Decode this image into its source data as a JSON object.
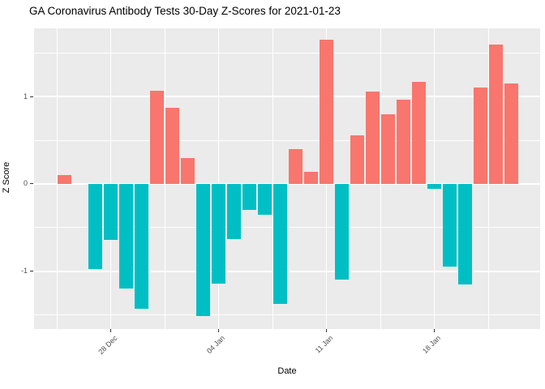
{
  "chart_data": {
    "type": "bar",
    "title": "GA Coronavirus Antibody Tests 30-Day Z-Scores for 2021-01-23",
    "xlabel": "Date",
    "ylabel": "Z Score",
    "legend_position": "none",
    "grid": true,
    "ylim": [
      -1.66,
      1.78
    ],
    "y_tick_values": [
      -1,
      0,
      1
    ],
    "y_tick_labels": [
      "-1",
      "0",
      "1"
    ],
    "x_tick_labels": [
      "28 Dec",
      "04 Jan",
      "11 Jan",
      "18 Jan"
    ],
    "x_tick_day_offsets": [
      3,
      10,
      17,
      24
    ],
    "colors": {
      "positive_bar": "#F8766D",
      "negative_bar": "#00BFC4",
      "panel_background": "#EBEBEB",
      "gridline": "#FFFFFF",
      "tick_label": "#4D4D4D",
      "tick_mark": "#333333",
      "title_text": "#000000",
      "axis_title_text": "#000000"
    },
    "bars": [
      {
        "date": "25 Dec",
        "day_offset": 0,
        "value": 0.1
      },
      {
        "date": "27 Dec",
        "day_offset": 2,
        "value": -0.97
      },
      {
        "date": "28 Dec",
        "day_offset": 3,
        "value": -0.64
      },
      {
        "date": "29 Dec",
        "day_offset": 4,
        "value": -1.2
      },
      {
        "date": "30 Dec",
        "day_offset": 5,
        "value": -1.43
      },
      {
        "date": "31 Dec",
        "day_offset": 6,
        "value": 1.07
      },
      {
        "date": "01 Jan",
        "day_offset": 7,
        "value": 0.87
      },
      {
        "date": "02 Jan",
        "day_offset": 8,
        "value": 0.3
      },
      {
        "date": "03 Jan",
        "day_offset": 9,
        "value": -1.51
      },
      {
        "date": "04 Jan",
        "day_offset": 10,
        "value": -1.14
      },
      {
        "date": "05 Jan",
        "day_offset": 11,
        "value": -0.63
      },
      {
        "date": "06 Jan",
        "day_offset": 12,
        "value": -0.3
      },
      {
        "date": "07 Jan",
        "day_offset": 13,
        "value": -0.35
      },
      {
        "date": "08 Jan",
        "day_offset": 14,
        "value": -1.37
      },
      {
        "date": "09 Jan",
        "day_offset": 15,
        "value": 0.4
      },
      {
        "date": "10 Jan",
        "day_offset": 16,
        "value": 0.14
      },
      {
        "date": "11 Jan",
        "day_offset": 17,
        "value": 1.65
      },
      {
        "date": "12 Jan",
        "day_offset": 18,
        "value": -1.09
      },
      {
        "date": "13 Jan",
        "day_offset": 19,
        "value": 0.56
      },
      {
        "date": "14 Jan",
        "day_offset": 20,
        "value": 1.06
      },
      {
        "date": "15 Jan",
        "day_offset": 21,
        "value": 0.8
      },
      {
        "date": "16 Jan",
        "day_offset": 22,
        "value": 0.96
      },
      {
        "date": "17 Jan",
        "day_offset": 23,
        "value": 1.17
      },
      {
        "date": "18 Jan",
        "day_offset": 24,
        "value": -0.06
      },
      {
        "date": "19 Jan",
        "day_offset": 25,
        "value": -0.95
      },
      {
        "date": "20 Jan",
        "day_offset": 26,
        "value": -1.15
      },
      {
        "date": "21 Jan",
        "day_offset": 27,
        "value": 1.1
      },
      {
        "date": "22 Jan",
        "day_offset": 28,
        "value": 1.59
      },
      {
        "date": "23 Jan",
        "day_offset": 29,
        "value": 1.15
      }
    ]
  }
}
